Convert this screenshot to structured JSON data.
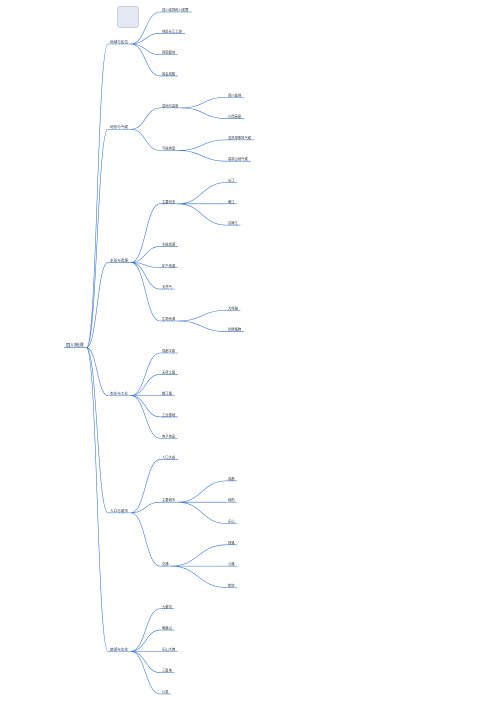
{
  "colors": {
    "branch": "#2d6fd6",
    "highlight": "#d21f1f",
    "text": "#333333"
  },
  "icon": "document-icon",
  "root": {
    "id": "root",
    "label": "四川地理",
    "depth": 0
  },
  "nodes": [
    {
      "id": "b1",
      "parent": "root",
      "depth": 1,
      "label": "地域与区位"
    },
    {
      "id": "b1a",
      "parent": "b1",
      "depth": 2,
      "label": "四川省简称川或蜀"
    },
    {
      "id": "b1b",
      "parent": "b1",
      "depth": 2,
      "label": "地处长江上游"
    },
    {
      "id": "b1c",
      "parent": "b1",
      "depth": 2,
      "label": "西南腹地"
    },
    {
      "id": "b1d",
      "parent": "b1",
      "depth": 2,
      "label": "省会成都"
    },
    {
      "id": "b2",
      "parent": "root",
      "depth": 1,
      "label": "地形与气候"
    },
    {
      "id": "b2a",
      "parent": "b2",
      "depth": 2,
      "label": "盆地与高原"
    },
    {
      "id": "b2a1",
      "parent": "b2a",
      "depth": 3,
      "label": "四川盆地"
    },
    {
      "id": "b2a2",
      "parent": "b2a",
      "depth": 3,
      "label": "川西高原"
    },
    {
      "id": "b2b",
      "parent": "b2",
      "depth": 2,
      "label": "气候类型"
    },
    {
      "id": "b2b1",
      "parent": "b2b",
      "depth": 3,
      "label": "亚热带季风气候"
    },
    {
      "id": "b2b2",
      "parent": "b2b",
      "depth": 3,
      "label": "高原山地气候"
    },
    {
      "id": "b3",
      "parent": "root",
      "depth": 1,
      "label": "水系与资源"
    },
    {
      "id": "b3a",
      "parent": "b3",
      "depth": 2,
      "label": "主要河流"
    },
    {
      "id": "b3a1",
      "parent": "b3a",
      "depth": 3,
      "label": "长江"
    },
    {
      "id": "b3a2",
      "parent": "b3a",
      "depth": 3,
      "label": "岷江"
    },
    {
      "id": "b3a3",
      "parent": "b3a",
      "depth": 3,
      "label": "嘉陵江"
    },
    {
      "id": "b3b",
      "parent": "b3",
      "depth": 2,
      "label": "水能资源"
    },
    {
      "id": "b3c",
      "parent": "b3",
      "depth": 2,
      "label": "矿产资源"
    },
    {
      "id": "b3d",
      "parent": "b3",
      "depth": 2,
      "label": "天然气"
    },
    {
      "id": "b3e",
      "parent": "b3",
      "depth": 2,
      "label": "生物资源"
    },
    {
      "id": "b3e1",
      "parent": "b3e",
      "depth": 3,
      "label": "大熊猫"
    },
    {
      "id": "b3e2",
      "parent": "b3e",
      "depth": 3,
      "label": "珍稀植物"
    },
    {
      "id": "b4",
      "parent": "root",
      "depth": 1,
      "label": "农业与工业"
    },
    {
      "id": "b4a",
      "parent": "b4",
      "depth": 2,
      "label": "成都平原"
    },
    {
      "id": "b4b",
      "parent": "b4",
      "depth": 2,
      "label": "天府之国"
    },
    {
      "id": "b4c",
      "parent": "b4",
      "depth": 2,
      "label": "都江堰"
    },
    {
      "id": "b4d",
      "parent": "b4",
      "depth": 2,
      "label": "工业基地"
    },
    {
      "id": "b4e",
      "parent": "b4",
      "depth": 2,
      "label": "电子信息"
    },
    {
      "id": "b5",
      "parent": "root",
      "depth": 1,
      "label": "人口与城市"
    },
    {
      "id": "b5a",
      "parent": "b5",
      "depth": 2,
      "label": "人口大省"
    },
    {
      "id": "b5b",
      "parent": "b5",
      "depth": 2,
      "label": "主要城市"
    },
    {
      "id": "b5b1",
      "parent": "b5b",
      "depth": 3,
      "label": "成都"
    },
    {
      "id": "b5b2",
      "parent": "b5b",
      "depth": 3,
      "label": "绵阳"
    },
    {
      "id": "b5b3",
      "parent": "b5b",
      "depth": 3,
      "label": "乐山"
    },
    {
      "id": "b5c",
      "parent": "b5",
      "depth": 2,
      "label": "交通"
    },
    {
      "id": "b5c1",
      "parent": "b5c",
      "depth": 3,
      "label": "铁路"
    },
    {
      "id": "b5c2",
      "parent": "b5c",
      "depth": 3,
      "label": "公路"
    },
    {
      "id": "b5c3",
      "parent": "b5c",
      "depth": 3,
      "label": "航空"
    },
    {
      "id": "b6",
      "parent": "root",
      "depth": 1,
      "label": "旅游与文化"
    },
    {
      "id": "b6a",
      "parent": "b6",
      "depth": 2,
      "label": "九寨沟"
    },
    {
      "id": "b6b",
      "parent": "b6",
      "depth": 2,
      "label": "峨眉山"
    },
    {
      "id": "b6c",
      "parent": "b6",
      "depth": 2,
      "label": "乐山大佛"
    },
    {
      "id": "b6d",
      "parent": "b6",
      "depth": 2,
      "label": "三星堆"
    },
    {
      "id": "b6e",
      "parent": "b6",
      "depth": 2,
      "label": "川菜"
    }
  ]
}
